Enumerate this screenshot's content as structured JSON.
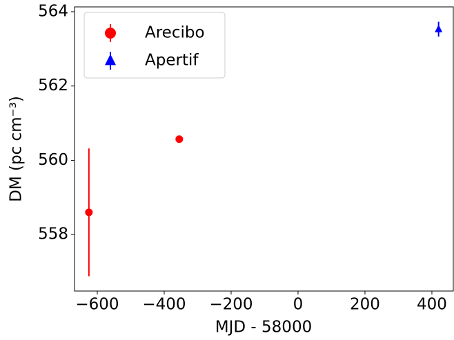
{
  "chart_data": {
    "type": "scatter",
    "xlabel": "MJD - 58000",
    "ylabel": "DM (pc cm⁻³)",
    "xlim": [
      -668,
      464
    ],
    "ylim": [
      556.48,
      564.13
    ],
    "xticks": [
      {
        "value": -600,
        "label": "−600"
      },
      {
        "value": -400,
        "label": "−400"
      },
      {
        "value": -200,
        "label": "−200"
      },
      0,
      200,
      400
    ],
    "yticks": [
      558,
      560,
      562,
      564
    ],
    "legend": "upper left",
    "series": [
      {
        "name": "Arecibo",
        "color": "#ff0000",
        "marker": "circle",
        "x": [
          -625,
          -355
        ],
        "values": [
          558.6,
          560.57
        ],
        "errors": [
          1.72,
          0.04
        ]
      },
      {
        "name": "Apertif",
        "color": "#0000ff",
        "marker": "triangle",
        "x": [
          420
        ],
        "values": [
          563.53
        ],
        "errors": [
          0.2
        ]
      }
    ]
  }
}
